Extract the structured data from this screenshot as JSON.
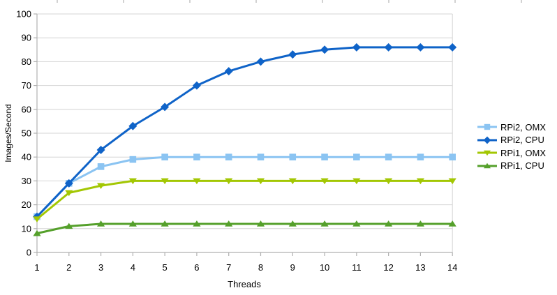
{
  "chart_data": {
    "type": "line",
    "title": "",
    "xlabel": "Threads",
    "ylabel": "Images/Second",
    "x": [
      1,
      2,
      3,
      4,
      5,
      6,
      7,
      8,
      9,
      10,
      11,
      12,
      13,
      14
    ],
    "y_ticks": [
      0,
      10,
      20,
      30,
      40,
      50,
      60,
      70,
      80,
      90,
      100
    ],
    "ylim": [
      0,
      100
    ],
    "grid": "horizontal",
    "legend_position": "right",
    "series": [
      {
        "name": "RPi2, OMX",
        "marker": "square",
        "color": "#8BC4F2",
        "values": [
          15,
          29,
          36,
          39,
          40,
          40,
          40,
          40,
          40,
          40,
          40,
          40,
          40,
          40
        ]
      },
      {
        "name": "RPi2, CPU",
        "marker": "diamond",
        "color": "#0F63C8",
        "values": [
          15,
          29,
          43,
          53,
          61,
          70,
          76,
          80,
          83,
          85,
          86,
          86,
          86,
          86
        ]
      },
      {
        "name": "RPi1, OMX",
        "marker": "triangle-down",
        "color": "#A3C703",
        "values": [
          14,
          25,
          28,
          30,
          30,
          30,
          30,
          30,
          30,
          30,
          30,
          30,
          30,
          30
        ]
      },
      {
        "name": "RPi1, CPU",
        "marker": "triangle-up",
        "color": "#55A02B",
        "values": [
          8,
          11,
          12,
          12,
          12,
          12,
          12,
          12,
          12,
          12,
          12,
          12,
          12,
          12
        ]
      }
    ],
    "style": {
      "background": "#ffffff",
      "grid_color": "#d4d4d4",
      "axis_color": "#b0b0b0",
      "text_color": "#000000"
    },
    "artifacts": {
      "top_ruler_ticks_x": [
        82,
        177,
        272,
        367,
        462,
        557,
        652,
        747
      ]
    }
  }
}
